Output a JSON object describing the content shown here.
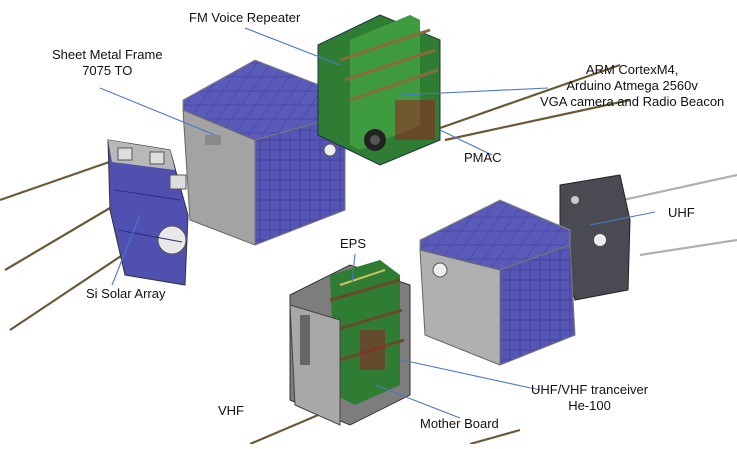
{
  "labels": {
    "fm_voice_repeater": "FM Voice Repeater",
    "sheet_metal_frame_line1": "Sheet Metal Frame",
    "sheet_metal_frame_line2": "7075 TO",
    "arm_line1": "ARM CortexM4,",
    "arm_line2": "Arduino Atmega 2560v",
    "arm_line3": "VGA camera and Radio Beacon",
    "pmac": "PMAC",
    "uhf": "UHF",
    "eps": "EPS",
    "si_solar_array": "Si Solar Array",
    "uhf_vhf_line1": "UHF/VHF tranceiver",
    "uhf_vhf_line2": "He-100",
    "vhf": "VHF",
    "mother_board": "Mother Board"
  },
  "colors": {
    "leader_line": "#4a78c8",
    "solar_cell": "#4a4aa8",
    "frame_gray": "#9a9a9a",
    "pcb_green": "#2e7d32",
    "antenna": "#6b5a3a"
  }
}
